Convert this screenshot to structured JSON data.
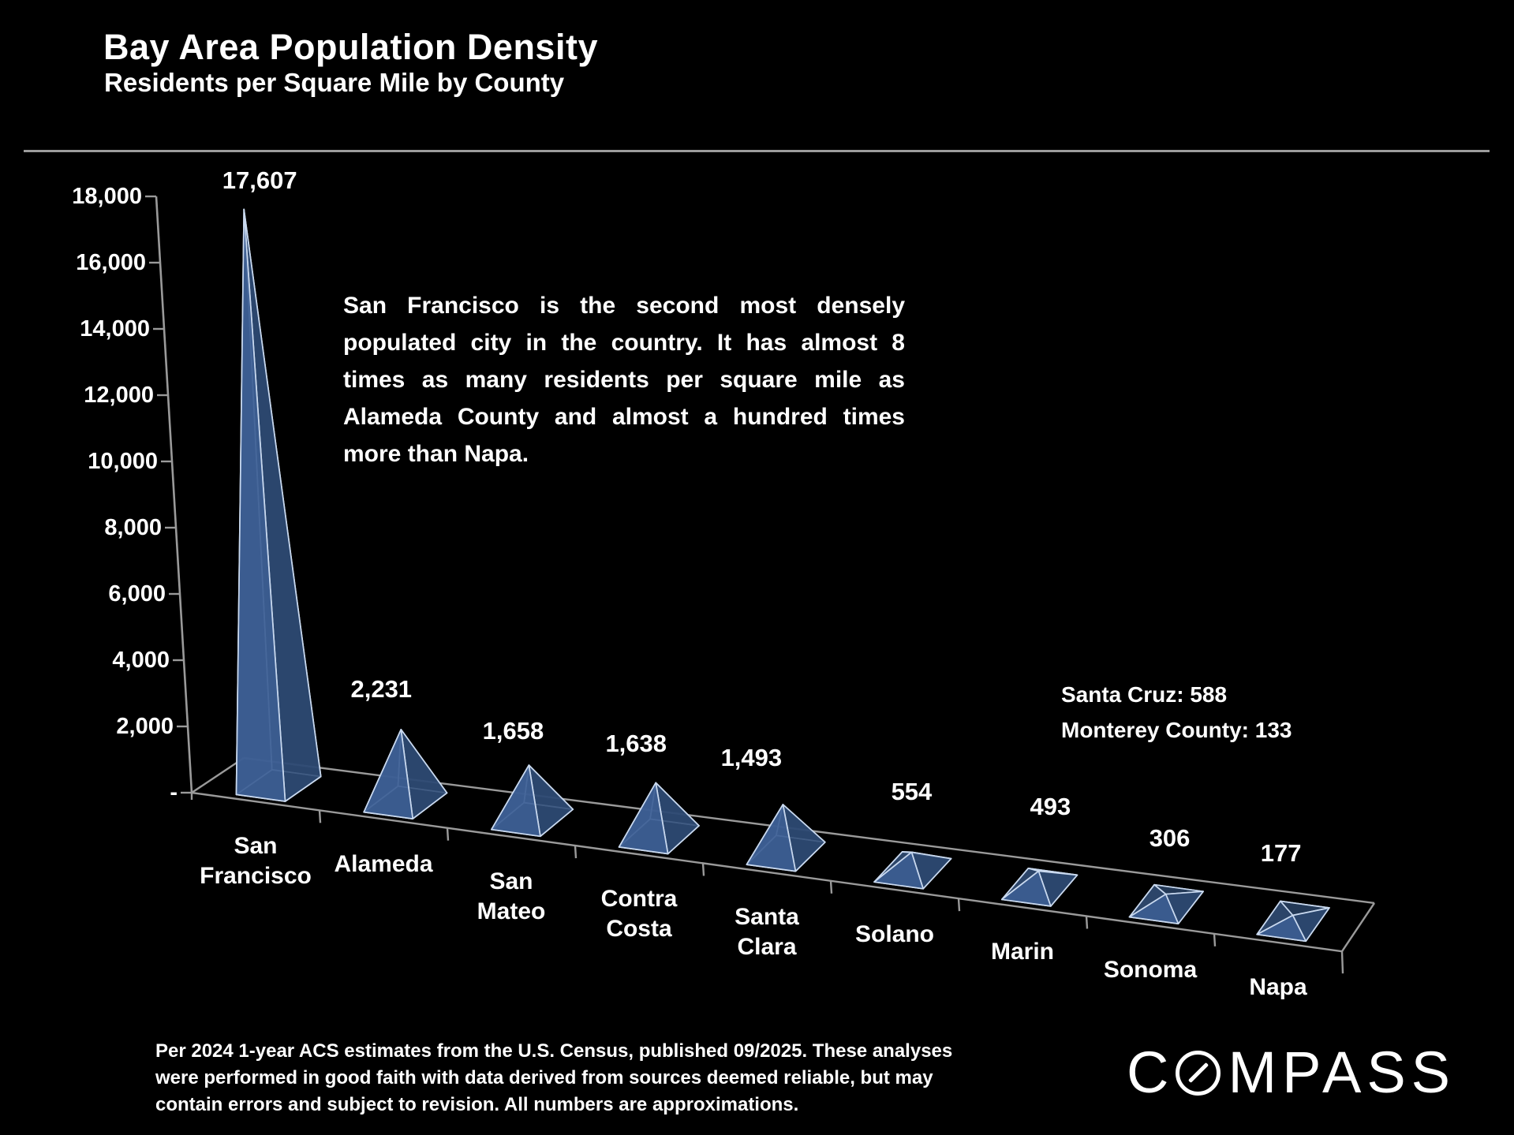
{
  "slide": {
    "annotation_lines": [
      "San Francisco is the second most densely",
      "populated city in the country. It has almost 8",
      "times as many residents per square mile as",
      "Alameda County and almost a hundred times",
      "more than Napa."
    ],
    "side_note_lines": [
      "Santa Cruz:  588",
      "Monterey County:  133"
    ],
    "footer_lines": [
      "Per 2024 1-year ACS estimates from the U.S. Census, published 09/2025. These analyses",
      "were performed in good faith with data derived from sources deemed reliable, but may",
      "contain errors and subject to revision. All numbers are approximations."
    ],
    "logo": {
      "name": "COMPASS",
      "letter_before_ring": "C",
      "letters_after_ring": "MPASS"
    }
  },
  "chart_data": {
    "type": "bar",
    "style": "3d-pyramid",
    "title": "Bay Area Population Density",
    "subtitle": "Residents per Square Mile by County",
    "categories": [
      "San Francisco",
      "Alameda",
      "San Mateo",
      "Contra Costa",
      "Santa Clara",
      "Solano",
      "Marin",
      "Sonoma",
      "Napa"
    ],
    "category_label_lines": [
      [
        "San",
        "Francisco"
      ],
      [
        "Alameda"
      ],
      [
        "San",
        "Mateo"
      ],
      [
        "Contra",
        "Costa"
      ],
      [
        "Santa",
        "Clara"
      ],
      [
        "Solano"
      ],
      [
        "Marin"
      ],
      [
        "Sonoma"
      ],
      [
        "Napa"
      ]
    ],
    "values": [
      17607,
      2231,
      1658,
      1638,
      1493,
      554,
      493,
      306,
      177
    ],
    "value_labels": [
      "17,607",
      "2,231",
      "1,658",
      "1,638",
      "1,493",
      "554",
      "493",
      "306",
      "177"
    ],
    "xlabel": "",
    "ylabel": "",
    "gridlines": false,
    "legend": "none",
    "y_axis": {
      "min": 0,
      "max": 18000,
      "tick_step": 2000,
      "ticks": [
        {
          "value": 18000,
          "label": "18,000"
        },
        {
          "value": 16000,
          "label": "16,000"
        },
        {
          "value": 14000,
          "label": "14,000"
        },
        {
          "value": 12000,
          "label": "12,000"
        },
        {
          "value": 10000,
          "label": "10,000"
        },
        {
          "value": 8000,
          "label": "8,000"
        },
        {
          "value": 6000,
          "label": "6,000"
        },
        {
          "value": 4000,
          "label": "4,000"
        },
        {
          "value": 2000,
          "label": "2,000"
        },
        {
          "value": 0,
          "label": "-"
        }
      ]
    },
    "colors": {
      "background": "#000000",
      "text": "#ffffff",
      "axis": "#9a9a9a",
      "pyramid_front": "#3d5f95",
      "pyramid_right": "#2d4a74",
      "pyramid_left": "#35547f",
      "pyramid_back": "#2a4468",
      "pyramid_base": "#33517e",
      "pyramid_edge": "#c9d9ef"
    }
  }
}
